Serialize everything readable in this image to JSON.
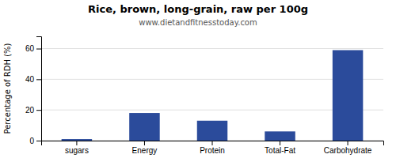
{
  "chart_data": {
    "type": "bar",
    "title": "Rice, brown, long-grain, raw per 100g",
    "subtitle": "www.dietandfitnesstoday.com",
    "categories": [
      "sugars",
      "Energy",
      "Protein",
      "Total-Fat",
      "Carbohydrate"
    ],
    "values": [
      1,
      18,
      13,
      6,
      59
    ],
    "color": "#2b4b9b",
    "ylabel": "Percentage of RDH (%)",
    "ylim": [
      0,
      68
    ],
    "yticks": [
      0,
      20,
      40,
      60
    ],
    "grid": true
  }
}
